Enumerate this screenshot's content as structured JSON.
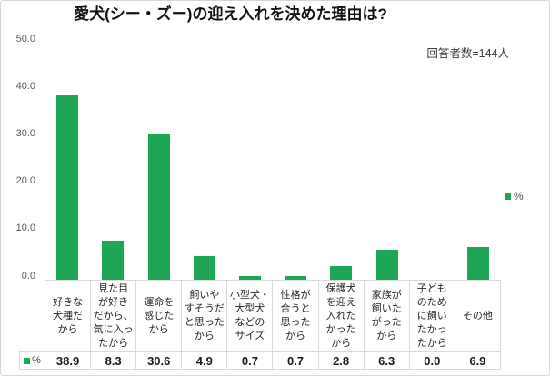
{
  "chart": {
    "legend": {
      "series_label": "%"
    },
    "table_key_label": "%"
  },
  "chart_data": {
    "type": "bar",
    "title": "愛犬(シー・ズー)の迎え入れを決めた理由は?",
    "subtitle": "回答者数=144人",
    "categories": [
      "好きな犬種だから",
      "見た目が好きだから、気に入ったから",
      "運命を感じたから",
      "飼いやすそうだと思ったから",
      "小型犬・大型犬などのサイズ",
      "性格が合うと思ったから",
      "保護犬を迎え入れたかったから",
      "家族が飼いたがったから",
      "子どものために飼いたかったから",
      "その他"
    ],
    "category_lines": [
      [
        "好きな",
        "犬種だ",
        "から"
      ],
      [
        "見た目",
        "が好き",
        "だから、",
        "気に入っ",
        "たから"
      ],
      [
        "運命を",
        "感じた",
        "から"
      ],
      [
        "飼いや",
        "すそうだ",
        "と思った",
        "から"
      ],
      [
        "小型犬・",
        "大型犬",
        "などの",
        "サイズ"
      ],
      [
        "性格が",
        "合うと",
        "思った",
        "から"
      ],
      [
        "保護犬",
        "を迎え",
        "入れた",
        "かった",
        "から"
      ],
      [
        "家族が",
        "飼いた",
        "がった",
        "から"
      ],
      [
        "子ども",
        "のため",
        "に飼い",
        "たかっ",
        "たから"
      ],
      [
        "その他"
      ]
    ],
    "series": [
      {
        "name": "%",
        "values": [
          38.9,
          8.3,
          30.6,
          4.9,
          0.7,
          0.7,
          2.8,
          6.3,
          0.0,
          6.9
        ]
      }
    ],
    "ylim": [
      0,
      50
    ],
    "yticks": [
      0,
      10,
      20,
      30,
      40,
      50
    ],
    "ytick_decimals": 1,
    "value_decimals": 1,
    "grid": false,
    "legend_position": "right",
    "data_table_shown": true,
    "bar_color": "#1ea656"
  },
  "colors": {
    "bar": "#1ea656",
    "table_border": "#d9d9d9",
    "axis_text": "#595959",
    "title_text": "#111111"
  }
}
